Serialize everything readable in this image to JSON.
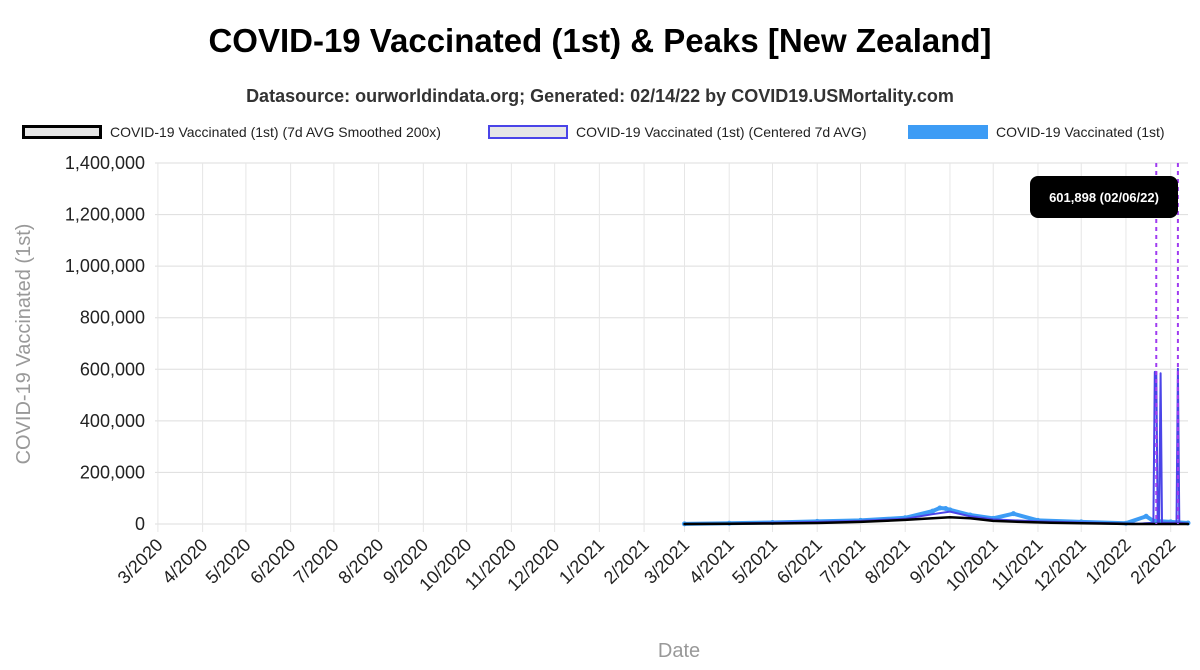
{
  "title": "COVID-19 Vaccinated (1st) & Peaks [New Zealand]",
  "subtitle": "Datasource: ourworldindata.org; Generated: 02/14/22 by COVID19.USMortality.com",
  "legend": [
    {
      "label": "COVID-19 Vaccinated (1st) (7d AVG Smoothed 200x)",
      "color": "#000000"
    },
    {
      "label": "COVID-19 Vaccinated (1st) (Centered 7d AVG)",
      "color": "#4a44e8"
    },
    {
      "label": "COVID-19 Vaccinated (1st)",
      "color": "#3d9cf5"
    }
  ],
  "tooltip": "601,898 (02/06/22)",
  "chart_data": {
    "type": "line",
    "title": "COVID-19 Vaccinated (1st) & Peaks [New Zealand]",
    "xlabel": "Date",
    "ylabel": "COVID-19 Vaccinated (1st)",
    "ylim": [
      0,
      1400000
    ],
    "yticks": [
      "0",
      "200,000",
      "400,000",
      "600,000",
      "800,000",
      "1,000,000",
      "1,200,000",
      "1,400,000"
    ],
    "xticks": [
      "3/2020",
      "4/2020",
      "5/2020",
      "6/2020",
      "7/2020",
      "8/2020",
      "9/2020",
      "10/2020",
      "11/2020",
      "12/2020",
      "1/2021",
      "2/2021",
      "3/2021",
      "4/2021",
      "5/2021",
      "6/2021",
      "7/2021",
      "8/2021",
      "9/2021",
      "10/2021",
      "11/2021",
      "12/2021",
      "1/2022",
      "2/2022"
    ],
    "xrange": [
      "2020-02-28",
      "2022-02-13"
    ],
    "grid": true,
    "legend_position": "top",
    "series": [
      {
        "name": "COVID-19 Vaccinated (1st) (7d AVG Smoothed 200x)",
        "color": "#000000",
        "points": [
          [
            "2021-03-01",
            0
          ],
          [
            "2021-04-01",
            1000
          ],
          [
            "2021-05-01",
            2000
          ],
          [
            "2021-06-01",
            4000
          ],
          [
            "2021-07-01",
            8000
          ],
          [
            "2021-08-01",
            16000
          ],
          [
            "2021-08-20",
            22000
          ],
          [
            "2021-09-01",
            26000
          ],
          [
            "2021-09-15",
            22000
          ],
          [
            "2021-10-01",
            12000
          ],
          [
            "2021-10-20",
            8000
          ],
          [
            "2021-11-10",
            5000
          ],
          [
            "2021-12-01",
            3000
          ],
          [
            "2021-12-20",
            1500
          ],
          [
            "2022-01-05",
            0
          ],
          [
            "2022-02-13",
            0
          ]
        ]
      },
      {
        "name": "COVID-19 Vaccinated (1st) (Centered 7d AVG)",
        "color": "#4a44e8",
        "points": [
          [
            "2021-03-01",
            0
          ],
          [
            "2021-04-01",
            2000
          ],
          [
            "2021-05-01",
            5000
          ],
          [
            "2021-06-01",
            8000
          ],
          [
            "2021-07-01",
            12000
          ],
          [
            "2021-08-01",
            20000
          ],
          [
            "2021-08-20",
            38000
          ],
          [
            "2021-09-01",
            48000
          ],
          [
            "2021-09-15",
            30000
          ],
          [
            "2021-10-01",
            18000
          ],
          [
            "2021-11-01",
            10000
          ],
          [
            "2021-12-01",
            6000
          ],
          [
            "2022-01-10",
            1000
          ],
          [
            "2022-01-20",
            5000
          ],
          [
            "2022-01-21",
            590000
          ],
          [
            "2022-01-22",
            590000
          ],
          [
            "2022-01-23",
            5000
          ],
          [
            "2022-01-24",
            5000
          ],
          [
            "2022-01-25",
            585000
          ],
          [
            "2022-01-26",
            5000
          ],
          [
            "2022-02-05",
            5000
          ],
          [
            "2022-02-06",
            601898
          ],
          [
            "2022-02-07",
            5000
          ],
          [
            "2022-02-13",
            2000
          ]
        ]
      },
      {
        "name": "COVID-19 Vaccinated (1st)",
        "color": "#3d9cf5",
        "points": [
          [
            "2021-03-01",
            500
          ],
          [
            "2021-04-01",
            3000
          ],
          [
            "2021-05-01",
            6000
          ],
          [
            "2021-06-01",
            10000
          ],
          [
            "2021-07-01",
            14000
          ],
          [
            "2021-08-01",
            24000
          ],
          [
            "2021-08-20",
            50000
          ],
          [
            "2021-08-25",
            62000
          ],
          [
            "2021-08-29",
            60000
          ],
          [
            "2021-09-01",
            55000
          ],
          [
            "2021-09-15",
            35000
          ],
          [
            "2021-10-01",
            22000
          ],
          [
            "2021-10-15",
            40000
          ],
          [
            "2021-11-01",
            14000
          ],
          [
            "2021-12-01",
            8000
          ],
          [
            "2022-01-01",
            3000
          ],
          [
            "2022-01-15",
            30000
          ],
          [
            "2022-01-20",
            12000
          ],
          [
            "2022-02-01",
            8000
          ],
          [
            "2022-02-13",
            4000
          ]
        ]
      }
    ],
    "peaks": [
      {
        "date": "2022-01-22",
        "value": 590000
      },
      {
        "date": "2022-02-06",
        "value": 601898
      }
    ]
  }
}
